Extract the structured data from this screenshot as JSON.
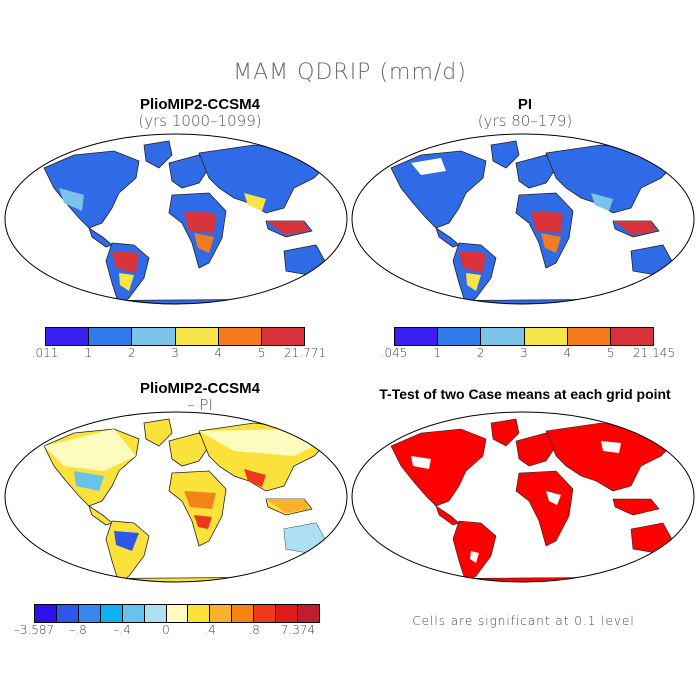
{
  "main_title": "MAM QDRIP (mm/d)",
  "panels": {
    "top_left": {
      "title": "PlioMIP2-CCSM4",
      "subtitle": "(yrs 1000–1099)"
    },
    "top_right": {
      "title": "PI",
      "subtitle": "(yrs 80–179)"
    },
    "bottom_left": {
      "title": "PlioMIP2-CCSM4",
      "subtitle": "– PI"
    },
    "bottom_right": {
      "title": "T-Test of two Case means at each grid point"
    }
  },
  "colorbars": {
    "top_left": {
      "labels": [
        ".011",
        "1",
        "2",
        "3",
        "4",
        "5",
        "21.771"
      ],
      "colors": [
        "#3b1ff0",
        "#2f7bea",
        "#7cc3ea",
        "#f7e34a",
        "#f47a1e",
        "#d8323a"
      ]
    },
    "top_right": {
      "labels": [
        ".045",
        "1",
        "2",
        "3",
        "4",
        "5",
        "21.145"
      ],
      "colors": [
        "#3b1ff0",
        "#2f7bea",
        "#7cc3ea",
        "#f7e34a",
        "#f47a1e",
        "#d8323a"
      ]
    },
    "bottom_left": {
      "labels": [
        "–3.587",
        "–.8",
        "–.4",
        "0",
        ".4",
        ".8",
        "7.374"
      ],
      "label_positions": [
        0,
        2,
        4,
        6,
        8,
        10,
        12
      ],
      "colors": [
        "#2c10f0",
        "#2d57ea",
        "#3a86ef",
        "#0eb2f2",
        "#68c3ea",
        "#ade0f2",
        "#fdfbbd",
        "#fbe23a",
        "#f8b12a",
        "#f58214",
        "#ef3a1a",
        "#de1a1a",
        "#bf1e2e"
      ]
    }
  },
  "significance_note": "Cells are significant at 0.1 level",
  "significance_color": "#ff0000"
}
